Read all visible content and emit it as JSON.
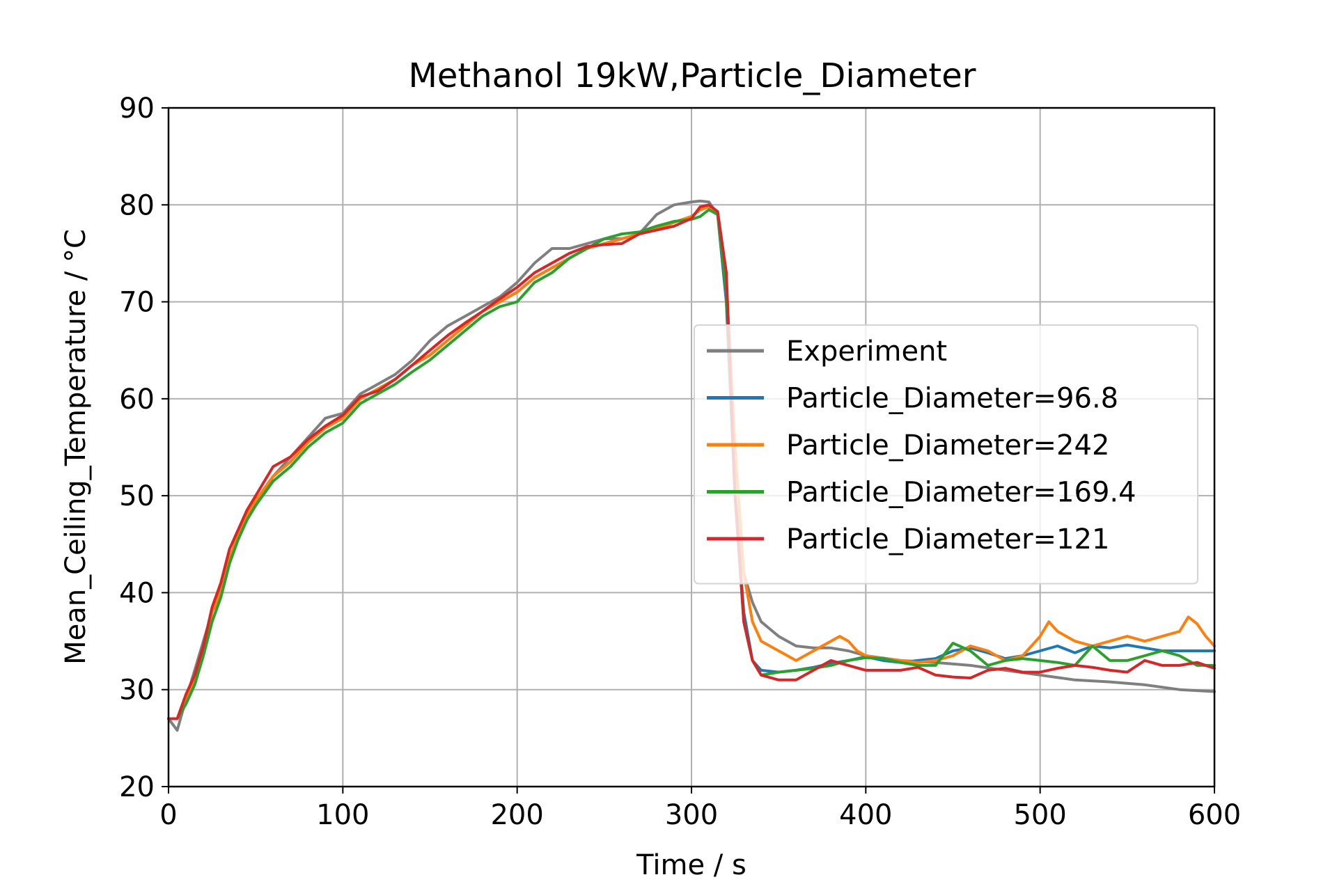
{
  "chart_data": {
    "type": "line",
    "title": "Methanol 19kW,Particle_Diameter",
    "xlabel": "Time / s",
    "ylabel": "Mean_Ceiling_Temperature / °C",
    "xlim": [
      0,
      600
    ],
    "ylim": [
      20,
      90
    ],
    "xticks": [
      0,
      100,
      200,
      300,
      400,
      500,
      600
    ],
    "yticks": [
      20,
      30,
      40,
      50,
      60,
      70,
      80,
      90
    ],
    "grid": true,
    "legend_position": "center-right",
    "series": [
      {
        "name": "Experiment",
        "color": "#7f7f7f",
        "x": [
          0,
          5,
          10,
          15,
          20,
          25,
          30,
          35,
          40,
          45,
          50,
          60,
          70,
          80,
          90,
          100,
          110,
          120,
          130,
          140,
          150,
          160,
          170,
          180,
          190,
          200,
          210,
          220,
          230,
          240,
          250,
          260,
          270,
          280,
          290,
          300,
          305,
          310,
          315,
          320,
          325,
          330,
          335,
          340,
          350,
          360,
          370,
          380,
          390,
          400,
          420,
          440,
          460,
          480,
          500,
          520,
          540,
          560,
          580,
          600
        ],
        "y": [
          27,
          25.8,
          29,
          32,
          35,
          38,
          41,
          43.5,
          45.5,
          47.5,
          49,
          52,
          54,
          56,
          58,
          58.5,
          60.5,
          61.5,
          62.5,
          64,
          66,
          67.5,
          68.5,
          69.5,
          70.5,
          72,
          74,
          75.5,
          75.5,
          76,
          76.5,
          76.5,
          77,
          79,
          80,
          80.3,
          80.4,
          80.3,
          79,
          70,
          50,
          42,
          39,
          37,
          35.5,
          34.5,
          34.3,
          34.3,
          34,
          33.5,
          33,
          32.8,
          32.5,
          32,
          31.5,
          31,
          30.8,
          30.5,
          30,
          29.8
        ]
      },
      {
        "name": "Particle_Diameter=96.8",
        "color": "#1f77b4",
        "x": [
          0,
          5,
          10,
          15,
          20,
          25,
          30,
          35,
          40,
          45,
          50,
          60,
          70,
          80,
          90,
          100,
          110,
          120,
          130,
          140,
          150,
          160,
          170,
          180,
          190,
          200,
          210,
          220,
          230,
          240,
          250,
          260,
          270,
          280,
          290,
          300,
          305,
          310,
          315,
          320,
          325,
          330,
          335,
          340,
          350,
          360,
          370,
          380,
          390,
          400,
          410,
          420,
          430,
          440,
          450,
          460,
          470,
          480,
          490,
          500,
          510,
          520,
          530,
          540,
          550,
          560,
          570,
          580,
          590,
          600
        ],
        "y": [
          27,
          27,
          29,
          31,
          34,
          38,
          40,
          43.5,
          46,
          48,
          49.5,
          52,
          53.5,
          55.5,
          57,
          58,
          60,
          61,
          62,
          63.5,
          64.5,
          66,
          67.5,
          69,
          70,
          71,
          72.5,
          73.5,
          74.5,
          75.5,
          76,
          76.5,
          77,
          77.5,
          78.2,
          78.8,
          79.5,
          79.8,
          79,
          70,
          50,
          38,
          33,
          32,
          31.8,
          32,
          32.3,
          32.7,
          33,
          33.4,
          33,
          32.8,
          33,
          33.2,
          34,
          34.3,
          33.8,
          33.2,
          33.5,
          34,
          34.5,
          33.8,
          34.5,
          34.3,
          34.6,
          34.3,
          34,
          34,
          34,
          34
        ]
      },
      {
        "name": "Particle_Diameter=242",
        "color": "#ff7f0e",
        "x": [
          0,
          5,
          10,
          15,
          20,
          25,
          30,
          35,
          40,
          45,
          50,
          60,
          70,
          80,
          90,
          100,
          110,
          120,
          130,
          140,
          150,
          160,
          170,
          180,
          190,
          200,
          210,
          220,
          230,
          240,
          250,
          260,
          270,
          280,
          290,
          300,
          305,
          310,
          315,
          320,
          325,
          330,
          335,
          340,
          350,
          360,
          370,
          380,
          385,
          390,
          395,
          400,
          410,
          420,
          430,
          440,
          450,
          460,
          470,
          480,
          490,
          500,
          505,
          510,
          520,
          530,
          540,
          550,
          560,
          570,
          580,
          585,
          590,
          595,
          600
        ],
        "y": [
          27,
          27,
          29,
          31,
          34,
          38,
          40,
          43.5,
          46,
          48,
          49.5,
          52,
          53.5,
          55.5,
          57,
          58,
          60,
          61,
          62,
          63.5,
          64.5,
          66,
          67.5,
          69,
          70,
          71,
          72.5,
          73.5,
          74.5,
          75.5,
          76,
          76.5,
          77,
          77.5,
          78.2,
          78.8,
          79.5,
          79.8,
          79,
          72,
          55,
          42,
          37,
          35,
          34,
          33,
          34,
          35,
          35.5,
          35,
          34,
          33.5,
          33.2,
          33,
          32.8,
          33,
          33.5,
          34.5,
          34,
          33,
          33.5,
          35.5,
          37,
          36,
          35,
          34.5,
          35,
          35.5,
          35,
          35.5,
          36,
          37.5,
          36.8,
          35.5,
          34.5
        ]
      },
      {
        "name": "Particle_Diameter=169.4",
        "color": "#2ca02c",
        "x": [
          0,
          5,
          10,
          15,
          20,
          25,
          30,
          35,
          40,
          45,
          50,
          60,
          70,
          80,
          90,
          100,
          110,
          120,
          130,
          140,
          150,
          160,
          170,
          180,
          190,
          200,
          210,
          220,
          230,
          240,
          250,
          260,
          270,
          280,
          290,
          300,
          305,
          310,
          315,
          320,
          325,
          330,
          335,
          340,
          350,
          360,
          370,
          380,
          390,
          400,
          410,
          420,
          430,
          440,
          450,
          460,
          470,
          480,
          490,
          500,
          510,
          520,
          530,
          540,
          550,
          560,
          570,
          580,
          590,
          600
        ],
        "y": [
          27,
          27,
          28.5,
          30.5,
          33.5,
          37,
          39.5,
          43,
          45.5,
          47.5,
          49,
          51.5,
          53,
          55,
          56.5,
          57.5,
          59.5,
          60.5,
          61.5,
          62.8,
          64,
          65.5,
          67,
          68.5,
          69.5,
          70,
          72,
          73,
          74.5,
          75.5,
          76.5,
          77,
          77.2,
          77.8,
          78.3,
          78.5,
          78.8,
          79.5,
          79,
          71,
          50,
          37,
          33,
          31.5,
          31.8,
          32,
          32.2,
          32.5,
          33,
          33.3,
          33.2,
          32.8,
          32.5,
          32.5,
          34.8,
          34,
          32.5,
          33,
          33.2,
          33,
          32.8,
          32.5,
          34.5,
          33,
          33,
          33.5,
          34,
          33.5,
          32.5,
          32.5
        ]
      },
      {
        "name": "Particle_Diameter=121",
        "color": "#d62728",
        "x": [
          0,
          5,
          10,
          15,
          20,
          25,
          30,
          35,
          40,
          45,
          50,
          60,
          70,
          80,
          90,
          100,
          110,
          120,
          130,
          140,
          150,
          160,
          170,
          180,
          190,
          200,
          210,
          220,
          230,
          240,
          250,
          260,
          270,
          280,
          290,
          300,
          305,
          310,
          315,
          320,
          325,
          330,
          335,
          340,
          350,
          360,
          370,
          380,
          390,
          400,
          410,
          420,
          430,
          440,
          450,
          460,
          470,
          480,
          490,
          500,
          510,
          520,
          530,
          540,
          550,
          560,
          570,
          580,
          590,
          600
        ],
        "y": [
          27,
          27,
          29.5,
          31.5,
          34.5,
          38.5,
          41,
          44.5,
          46.5,
          48.5,
          50,
          53,
          54,
          55.8,
          57.2,
          58.3,
          60.2,
          60.8,
          62,
          63.5,
          65,
          66.5,
          67.8,
          69,
          70.3,
          71.5,
          73,
          74,
          75,
          75.7,
          75.9,
          76,
          77,
          77.4,
          77.8,
          78.6,
          79.8,
          80,
          79.3,
          73,
          50,
          37,
          33,
          31.5,
          31,
          31,
          32,
          33,
          32.5,
          32,
          32,
          32,
          32.3,
          31.5,
          31.3,
          31.2,
          32,
          32.2,
          31.8,
          31.8,
          32.2,
          32.5,
          32.3,
          32,
          31.8,
          33,
          32.5,
          32.5,
          32.8,
          32.2
        ]
      }
    ]
  }
}
